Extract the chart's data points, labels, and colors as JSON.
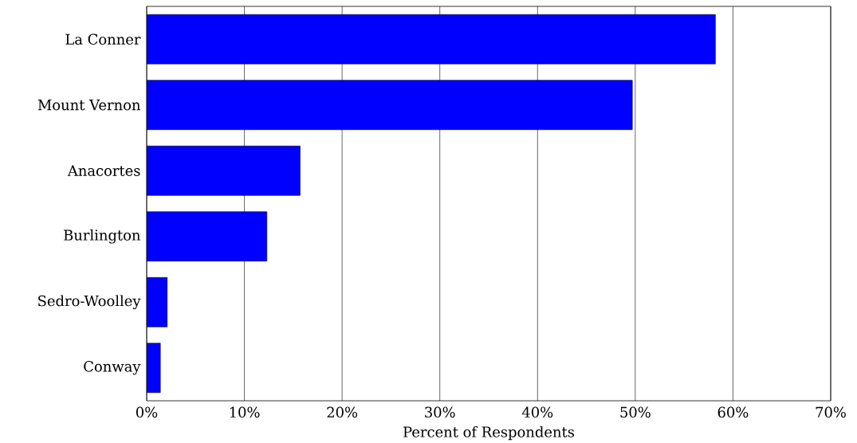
{
  "chart_data": {
    "type": "bar",
    "orientation": "horizontal",
    "xlabel": "Percent of Respondents",
    "categories": [
      "La Conner",
      "Mount Vernon",
      "Anacortes",
      "Burlington",
      "Sedro-Woolley",
      "Conway"
    ],
    "values": [
      58.2,
      49.7,
      15.7,
      12.3,
      2.1,
      1.4
    ],
    "color": "#0000ff",
    "xlim": [
      0,
      70
    ],
    "xticks": [
      {
        "value": 0,
        "label": "0%"
      },
      {
        "value": 10,
        "label": "10%"
      },
      {
        "value": 20,
        "label": "20%"
      },
      {
        "value": 30,
        "label": "30%"
      },
      {
        "value": 40,
        "label": "40%"
      },
      {
        "value": 50,
        "label": "50%"
      },
      {
        "value": 60,
        "label": "60%"
      },
      {
        "value": 70,
        "label": "70%"
      }
    ],
    "grid": "x"
  }
}
